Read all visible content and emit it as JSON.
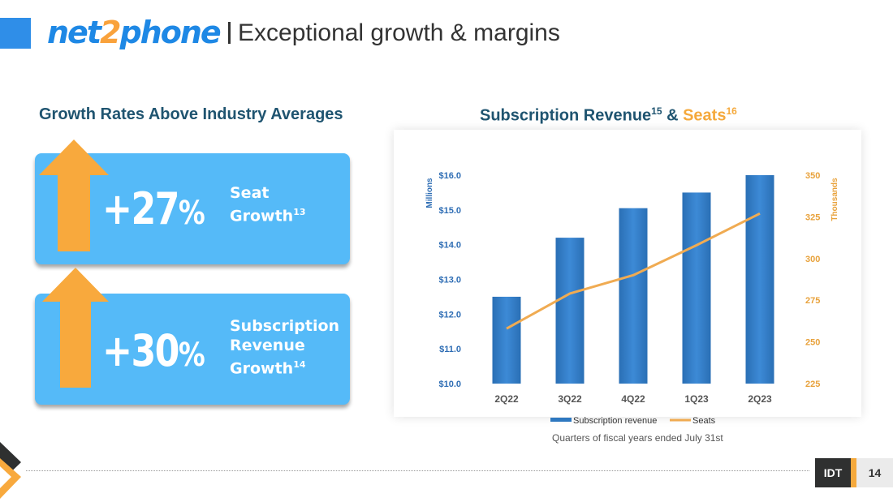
{
  "header": {
    "logo": {
      "part1": "net",
      "part2": "2",
      "part3": "phone"
    },
    "title": "Exceptional growth & margins"
  },
  "left": {
    "heading": "Growth Rates Above Industry Averages",
    "stats": [
      {
        "value": "+27",
        "unit": "%",
        "label_lines": [
          "Seat",
          "Growth"
        ],
        "footnote": "13"
      },
      {
        "value": "+30",
        "unit": "%",
        "label_lines": [
          "Subscription",
          "Revenue",
          "Growth"
        ],
        "footnote": "14"
      }
    ]
  },
  "right": {
    "heading_part1": "Subscription Revenue",
    "heading_sup1": "15",
    "heading_amp": " & ",
    "heading_part2": "Seats",
    "heading_sup2": "16",
    "note": "Quarters of fiscal years ended July 31st"
  },
  "chart_data": {
    "type": "bar",
    "categories": [
      "2Q22",
      "3Q22",
      "4Q22",
      "1Q23",
      "2Q23"
    ],
    "series": [
      {
        "name": "Subscription revenue",
        "type": "bar",
        "axis": "left",
        "values": [
          12.5,
          14.2,
          15.05,
          15.5,
          16.0
        ]
      },
      {
        "name": "Seats",
        "type": "line",
        "axis": "right",
        "values": [
          258,
          279,
          290,
          308,
          327
        ]
      }
    ],
    "y_left": {
      "label": "Millions",
      "range": [
        10,
        16
      ],
      "ticks": [
        "$10.0",
        "$11.0",
        "$12.0",
        "$13.0",
        "$14.0",
        "$15.0",
        "$16.0"
      ]
    },
    "y_right": {
      "label": "Thousands",
      "range": [
        225,
        350
      ],
      "ticks": [
        "225",
        "250",
        "275",
        "300",
        "325",
        "350"
      ]
    },
    "legend": "bottom",
    "colors": {
      "bar": "#2e78c0",
      "line": "#f0ab52",
      "left_axis": "#2e6db4",
      "right_axis": "#e8a23c"
    }
  },
  "footer": {
    "company": "IDT",
    "page": "14"
  }
}
